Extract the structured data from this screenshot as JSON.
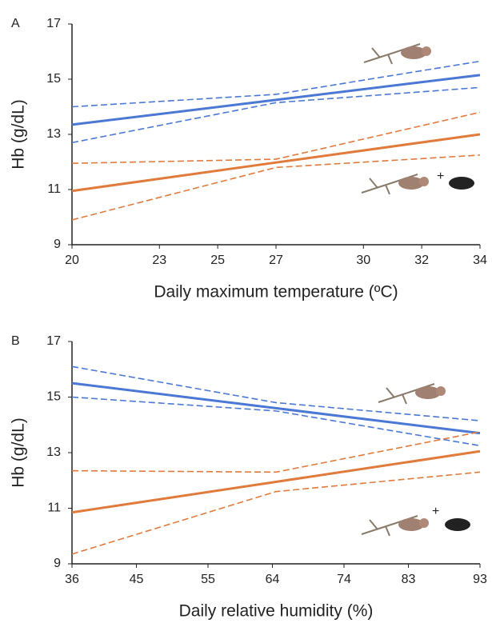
{
  "chart_data": [
    {
      "type": "line",
      "panel": "A",
      "ylabel": "Hb (g/dL)",
      "xlabel": "Daily maximum temperature (ºC)",
      "xlim": [
        20,
        34
      ],
      "xticks": [
        20,
        23,
        25,
        27,
        30,
        32,
        34
      ],
      "ylim": [
        9,
        17
      ],
      "yticks": [
        9,
        11,
        13,
        15,
        17
      ],
      "x": [
        20,
        27,
        34
      ],
      "series": [
        {
          "color": "#4a78d4",
          "dashed": false,
          "values": [
            13.35,
            14.25,
            15.15
          ]
        },
        {
          "color": "#4a78d4",
          "dashed": true,
          "values": [
            14.0,
            14.45,
            15.65
          ]
        },
        {
          "color": "#4a78d4",
          "dashed": true,
          "values": [
            12.7,
            14.15,
            14.7
          ]
        },
        {
          "color": "#e07b3c",
          "dashed": false,
          "values": [
            10.95,
            11.98,
            13.0
          ]
        },
        {
          "color": "#e07b3c",
          "dashed": true,
          "values": [
            11.95,
            12.1,
            13.8
          ]
        },
        {
          "color": "#e07b3c",
          "dashed": true,
          "values": [
            9.9,
            11.8,
            12.25
          ]
        }
      ]
    },
    {
      "type": "line",
      "panel": "B",
      "ylabel": "Hb (g/dL)",
      "xlabel": "Daily relative humidity (%)",
      "xlim": [
        36,
        93
      ],
      "xticks": [
        36,
        45,
        55,
        64,
        74,
        83,
        93
      ],
      "ylim": [
        9,
        17
      ],
      "yticks": [
        9,
        11,
        13,
        15,
        17
      ],
      "x": [
        36,
        64.5,
        93
      ],
      "series": [
        {
          "color": "#4a78d4",
          "dashed": false,
          "values": [
            15.5,
            14.6,
            13.7
          ]
        },
        {
          "color": "#4a78d4",
          "dashed": true,
          "values": [
            16.1,
            14.8,
            14.15
          ]
        },
        {
          "color": "#4a78d4",
          "dashed": true,
          "values": [
            15.0,
            14.5,
            13.25
          ]
        },
        {
          "color": "#e07b3c",
          "dashed": false,
          "values": [
            10.85,
            11.95,
            13.05
          ]
        },
        {
          "color": "#e07b3c",
          "dashed": true,
          "values": [
            12.35,
            12.3,
            13.75
          ]
        },
        {
          "color": "#e07b3c",
          "dashed": true,
          "values": [
            9.35,
            11.6,
            12.3
          ]
        }
      ]
    }
  ]
}
